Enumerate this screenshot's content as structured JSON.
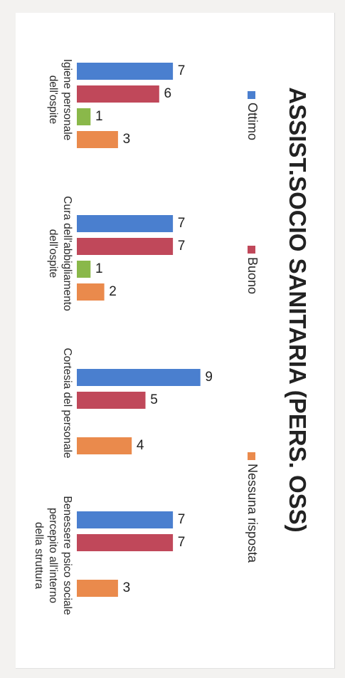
{
  "chart_data": {
    "type": "bar",
    "title": "ASSIST.SOCIO SANITARIA (PERS. OSS)",
    "categories": [
      [
        "Igiene personale",
        "dell'ospite"
      ],
      [
        "Cura dell'abbigliamento",
        "dell'ospite"
      ],
      [
        "Cortesia del personale"
      ],
      [
        "Benessere psico sociale",
        "percepito all'interno",
        "della struttura"
      ]
    ],
    "series": [
      {
        "name": "Ottimo",
        "color": "#4a7fcf",
        "values": [
          7,
          7,
          9,
          7
        ]
      },
      {
        "name": "Buono",
        "color": "#c0485a",
        "values": [
          6,
          7,
          5,
          7
        ]
      },
      {
        "name": "",
        "color": "#8ab84a",
        "values": [
          1,
          1,
          0,
          0
        ]
      },
      {
        "name": "Nessuna risposta",
        "color": "#ea8a4c",
        "values": [
          3,
          2,
          4,
          3
        ]
      }
    ],
    "legend_position": "top",
    "ylim": [
      0,
      9
    ],
    "grid": false
  }
}
